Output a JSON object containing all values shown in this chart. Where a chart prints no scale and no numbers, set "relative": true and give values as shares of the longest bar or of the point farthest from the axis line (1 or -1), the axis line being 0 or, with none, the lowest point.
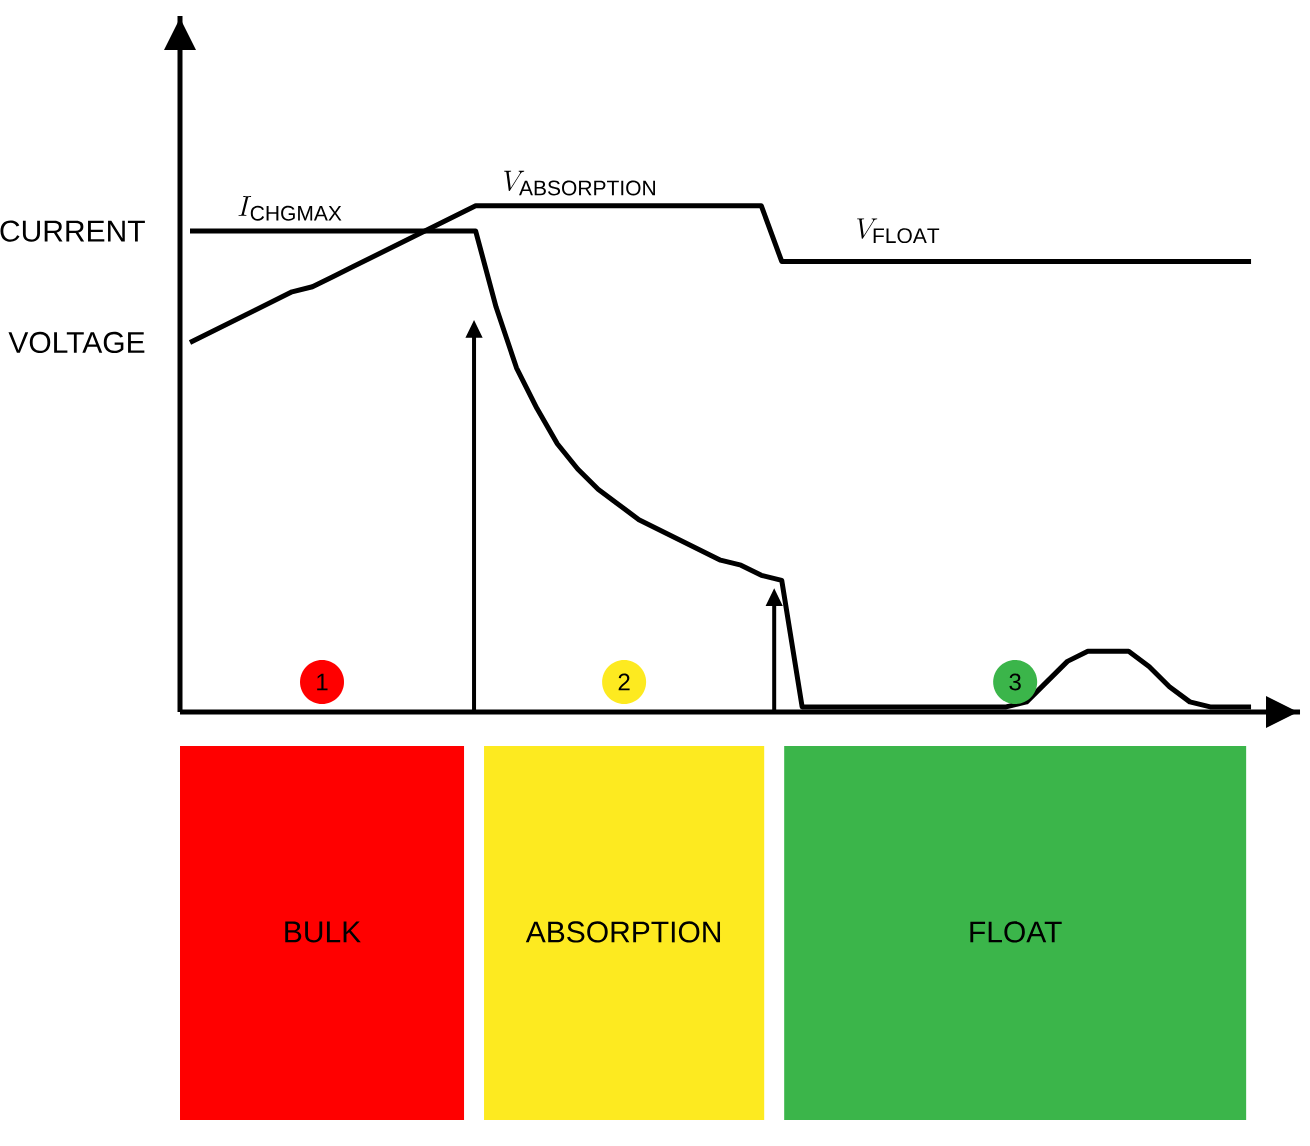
{
  "chart_data": {
    "type": "line",
    "relative": true,
    "categories": [
      null,
      null,
      null,
      null,
      null,
      null,
      null,
      null,
      null,
      null,
      null,
      null,
      null,
      null,
      null,
      null,
      null,
      null,
      null,
      null,
      null,
      null,
      null,
      null,
      null,
      null,
      null,
      null,
      null,
      null,
      null,
      null,
      null,
      null,
      null,
      null,
      null,
      null,
      null,
      null,
      null,
      null,
      null,
      null,
      null,
      null,
      null,
      null,
      null,
      null,
      null,
      null,
      null
    ],
    "series": [
      {
        "name": "CURRENT",
        "color": "#000000",
        "values": [
          0.95,
          0.95,
          0.95,
          0.95,
          0.95,
          0.95,
          0.95,
          0.95,
          0.95,
          0.95,
          0.95,
          0.95,
          0.95,
          0.95,
          0.95,
          0.8,
          0.68,
          0.6,
          0.53,
          0.48,
          0.44,
          0.41,
          0.38,
          0.36,
          0.34,
          0.32,
          0.3,
          0.29,
          0.27,
          0.26,
          0.01,
          0.01,
          0.01,
          0.01,
          0.01,
          0.01,
          0.01,
          0.01,
          0.01,
          0.01,
          0.01,
          0.02,
          0.06,
          0.1,
          0.12,
          0.12,
          0.12,
          0.09,
          0.05,
          0.02,
          0.01,
          0.01,
          0.01
        ]
      },
      {
        "name": "VOLTAGE",
        "color": "#000000",
        "values": [
          0.73,
          0.75,
          0.77,
          0.79,
          0.81,
          0.83,
          0.84,
          0.86,
          0.88,
          0.9,
          0.92,
          0.94,
          0.96,
          0.98,
          1.0,
          1.0,
          1.0,
          1.0,
          1.0,
          1.0,
          1.0,
          1.0,
          1.0,
          1.0,
          1.0,
          1.0,
          1.0,
          1.0,
          1.0,
          0.89,
          0.89,
          0.89,
          0.89,
          0.89,
          0.89,
          0.89,
          0.89,
          0.89,
          0.89,
          0.89,
          0.89,
          0.89,
          0.89,
          0.89,
          0.89,
          0.89,
          0.89,
          0.89,
          0.89,
          0.89,
          0.89,
          0.89,
          0.89
        ]
      }
    ],
    "annotations": [
      "I_{\\mathrm{CHGMAX}}",
      "V_{\\mathrm{ABSORPTION}}",
      "V_{\\mathrm{FLOAT}}",
      "1",
      "2",
      "3",
      "BULK",
      "ABSORPTION",
      "FLOAT"
    ]
  }
}
